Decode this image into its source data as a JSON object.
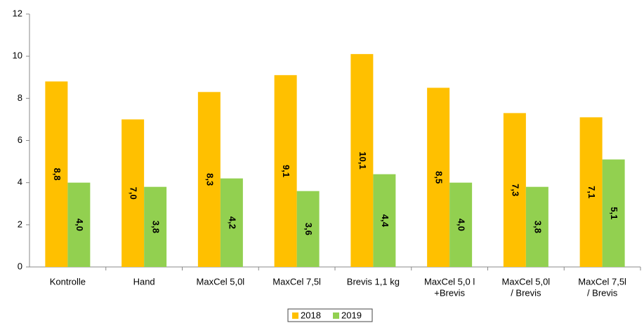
{
  "chart_data": {
    "type": "bar",
    "categories": [
      [
        "Kontrolle"
      ],
      [
        "Hand"
      ],
      [
        "MaxCel 5,0l"
      ],
      [
        "MaxCel 7,5l"
      ],
      [
        "Brevis 1,1 kg"
      ],
      [
        "MaxCel 5,0 l",
        "+Brevis"
      ],
      [
        "MaxCel 5,0l",
        "/ Brevis"
      ],
      [
        "MaxCel 7,5l",
        "/ Brevis"
      ]
    ],
    "series": [
      {
        "name": "2018",
        "color": "#FFC000",
        "values": [
          8.8,
          7.0,
          8.3,
          9.1,
          10.1,
          8.5,
          7.3,
          7.1
        ],
        "value_labels": [
          "8,8",
          "7,0",
          "8,3",
          "9,1",
          "10,1",
          "8,5",
          "7,3",
          "7,1"
        ]
      },
      {
        "name": "2019",
        "color": "#92D050",
        "values": [
          4.0,
          3.8,
          4.2,
          3.6,
          4.4,
          4.0,
          3.8,
          5.1
        ],
        "value_labels": [
          "4,0",
          "3,8",
          "4,2",
          "3,6",
          "4,4",
          "4,0",
          "3,8",
          "5,1"
        ]
      }
    ],
    "ylim": [
      0,
      12
    ],
    "yticks": [
      0,
      2,
      4,
      6,
      8,
      10,
      12
    ],
    "grid": false,
    "legend": "bottom"
  }
}
